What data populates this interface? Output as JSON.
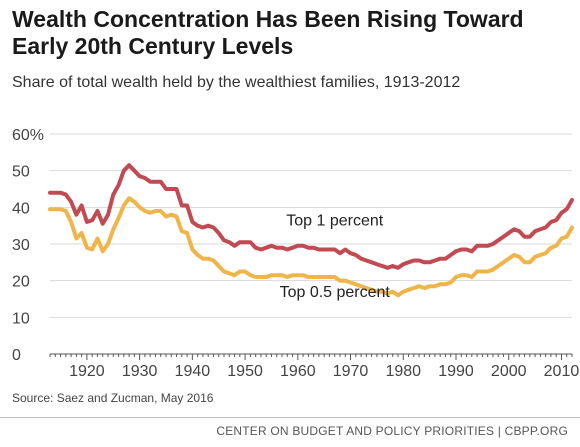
{
  "title": "Wealth Concentration Has Been Rising Toward Early 20th Century Levels",
  "subtitle": "Share of total wealth held by the wealthiest families, 1913-2012",
  "source": "Source: Saez and Zucman, May 2016",
  "footer": "CENTER ON BUDGET AND POLICY PRIORITIES | CBPP.ORG",
  "colors": {
    "top1": "#c24a52",
    "top05": "#f0b54a",
    "grid": "#d9d9d9",
    "axis": "#555555"
  },
  "chart_data": {
    "type": "line",
    "xlim": [
      1913,
      2012
    ],
    "ylim": [
      0,
      60
    ],
    "grid": true,
    "y_ticks": [
      "0",
      "10",
      "20",
      "30",
      "40",
      "50",
      "60%"
    ],
    "x_ticks": [
      "1920",
      "1930",
      "1940",
      "1950",
      "1960",
      "1970",
      "1980",
      "1990",
      "2000",
      "2010"
    ],
    "series": [
      {
        "name": "Top 1 percent",
        "color": "#c24a52",
        "x": [
          1913,
          1915,
          1916,
          1917,
          1918,
          1919,
          1920,
          1921,
          1922,
          1923,
          1924,
          1925,
          1926,
          1927,
          1928,
          1929,
          1930,
          1931,
          1932,
          1933,
          1934,
          1935,
          1936,
          1937,
          1938,
          1939,
          1940,
          1941,
          1942,
          1943,
          1944,
          1945,
          1946,
          1947,
          1948,
          1949,
          1950,
          1951,
          1952,
          1953,
          1954,
          1955,
          1956,
          1957,
          1958,
          1959,
          1960,
          1961,
          1962,
          1963,
          1964,
          1965,
          1966,
          1967,
          1968,
          1969,
          1970,
          1971,
          1972,
          1973,
          1974,
          1975,
          1976,
          1977,
          1978,
          1979,
          1980,
          1981,
          1982,
          1983,
          1984,
          1985,
          1986,
          1987,
          1988,
          1989,
          1990,
          1991,
          1992,
          1993,
          1994,
          1995,
          1996,
          1997,
          1998,
          1999,
          2000,
          2001,
          2002,
          2003,
          2004,
          2005,
          2006,
          2007,
          2008,
          2009,
          2010,
          2011,
          2012
        ],
        "values": [
          44,
          44,
          43.5,
          41.5,
          38,
          40.5,
          36,
          36.5,
          39,
          35.5,
          38,
          43.5,
          46,
          50,
          51.5,
          50,
          48.5,
          48,
          47,
          47,
          47,
          45,
          45,
          45,
          40.5,
          40.5,
          36,
          35,
          34.5,
          35,
          34.5,
          33,
          31,
          30.5,
          29.5,
          30.5,
          30.5,
          30.5,
          29,
          28.5,
          29,
          29.5,
          29,
          29,
          28.5,
          29,
          29.5,
          29.5,
          29,
          29,
          28.5,
          28.5,
          28.5,
          28.5,
          27.5,
          28.5,
          27.5,
          27,
          26,
          25.5,
          25,
          24.5,
          24,
          23.5,
          24,
          23.5,
          24.5,
          25,
          25.5,
          25.5,
          25,
          25,
          25.5,
          26,
          26,
          27,
          28,
          28.5,
          28.5,
          28,
          29.5,
          29.5,
          29.5,
          30,
          31,
          32,
          33,
          34,
          33.5,
          32,
          32,
          33.5,
          34,
          34.5,
          36,
          36.5,
          38.5,
          39.5,
          42
        ]
      },
      {
        "name": "Top 0.5 percent",
        "color": "#f0b54a",
        "x": [
          1913,
          1915,
          1916,
          1917,
          1918,
          1919,
          1920,
          1921,
          1922,
          1923,
          1924,
          1925,
          1926,
          1927,
          1928,
          1929,
          1930,
          1931,
          1932,
          1933,
          1934,
          1935,
          1936,
          1937,
          1938,
          1939,
          1940,
          1941,
          1942,
          1943,
          1944,
          1945,
          1946,
          1947,
          1948,
          1949,
          1950,
          1951,
          1952,
          1953,
          1954,
          1955,
          1956,
          1957,
          1958,
          1959,
          1960,
          1961,
          1962,
          1963,
          1964,
          1965,
          1966,
          1967,
          1968,
          1969,
          1970,
          1971,
          1972,
          1973,
          1974,
          1975,
          1976,
          1977,
          1978,
          1979,
          1980,
          1981,
          1982,
          1983,
          1984,
          1985,
          1986,
          1987,
          1988,
          1989,
          1990,
          1991,
          1992,
          1993,
          1994,
          1995,
          1996,
          1997,
          1998,
          1999,
          2000,
          2001,
          2002,
          2003,
          2004,
          2005,
          2006,
          2007,
          2008,
          2009,
          2010,
          2011,
          2012
        ],
        "values": [
          39.5,
          39.5,
          39,
          36,
          31.5,
          33,
          29,
          28.5,
          31.5,
          28,
          30,
          34,
          37,
          40.5,
          42.5,
          41.5,
          40,
          39,
          38.5,
          39,
          39,
          37.5,
          38,
          37.5,
          33.5,
          33,
          28.5,
          27,
          26,
          26,
          25.5,
          24,
          22.5,
          22,
          21.5,
          22.5,
          22.5,
          21.5,
          21,
          21,
          21,
          21.5,
          21.5,
          21.5,
          21,
          21.5,
          21.5,
          21.5,
          21,
          21,
          21,
          21,
          21,
          21,
          20,
          20,
          19.5,
          19,
          18.5,
          18,
          17.5,
          17,
          17,
          16.5,
          17,
          16,
          17,
          17.5,
          18,
          18.5,
          18,
          18.5,
          18.5,
          19,
          19,
          19.5,
          21,
          21.5,
          21.5,
          21,
          22.5,
          22.5,
          22.5,
          23,
          24,
          25,
          26,
          27,
          26.5,
          25,
          25,
          26.5,
          27,
          27.5,
          29,
          29.5,
          31.5,
          32,
          34.5
        ]
      }
    ],
    "annotations": [
      {
        "text": "Top 1 percent",
        "x": 1967,
        "y": 35
      },
      {
        "text": "Top 0.5 percent",
        "x": 1967,
        "y": 15.5
      }
    ]
  }
}
